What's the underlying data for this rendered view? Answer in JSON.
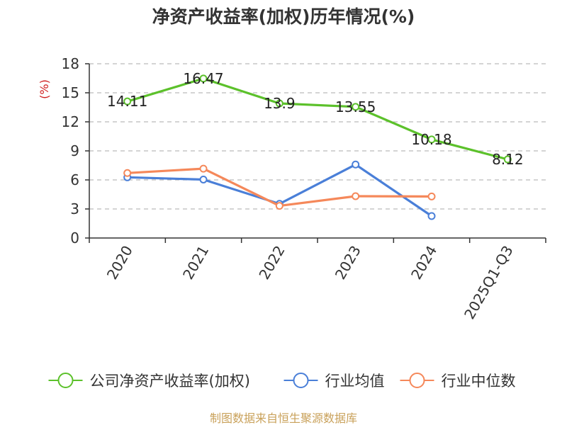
{
  "chart_data": {
    "type": "line",
    "title": "净资产收益率(加权)历年情况(%)",
    "ylabel": "(%)",
    "xlabel": "",
    "categories": [
      "2020",
      "2021",
      "2022",
      "2023",
      "2024",
      "2025Q1-Q3"
    ],
    "ylim": [
      0,
      18
    ],
    "yticks": [
      0,
      3,
      6,
      9,
      12,
      15,
      18
    ],
    "grid": true,
    "legend_position": "bottom",
    "series": [
      {
        "name": "公司净资产收益率(加权)",
        "color": "#5cc12b",
        "values": [
          14.11,
          16.47,
          13.9,
          13.55,
          10.18,
          8.12
        ],
        "labels": [
          "14.11",
          "16.47",
          "13.9",
          "13.55",
          "10.18",
          "8.12"
        ]
      },
      {
        "name": "行业均值",
        "color": "#4a7fd8",
        "values": [
          6.27,
          6.04,
          3.53,
          7.59,
          2.27,
          null
        ]
      },
      {
        "name": "行业中位数",
        "color": "#f5885a",
        "values": [
          6.71,
          7.16,
          3.32,
          4.32,
          4.29,
          null
        ]
      }
    ],
    "source": "制图数据来自恒生聚源数据库"
  },
  "colors": {
    "axis": "#333333",
    "grid": "#bbbbbb",
    "unit_label": "#d02020",
    "source_text": "#c9a15a"
  }
}
